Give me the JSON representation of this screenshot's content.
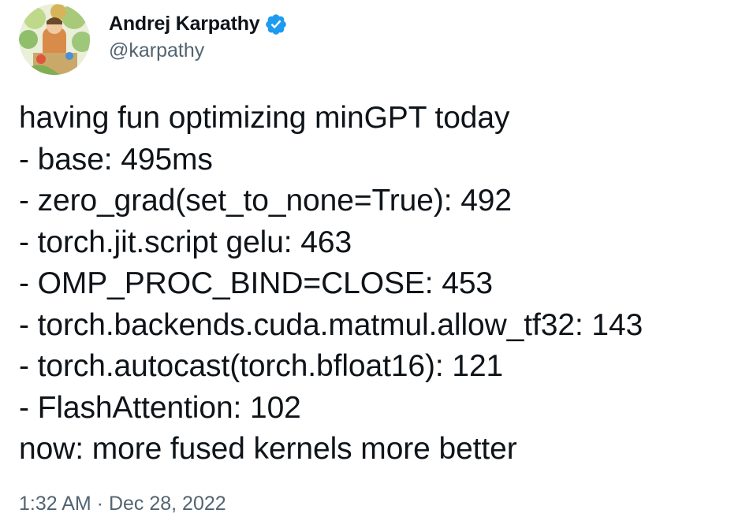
{
  "author": {
    "display_name": "Andrej Karpathy",
    "handle": "@karpathy",
    "verified": true,
    "verified_color": "#1d9bf0"
  },
  "tweet": {
    "lines": [
      "having fun optimizing minGPT today",
      "- base: 495ms",
      "- zero_grad(set_to_none=True): 492",
      "- torch.jit.script gelu: 463",
      "- OMP_PROC_BIND=CLOSE: 453",
      "- torch.backends.cuda.matmul.allow_tf32: 143",
      "- torch.autocast(torch.bfloat16): 121",
      "- FlashAttention: 102",
      "now: more fused kernels more better"
    ],
    "timestamp": "1:32 AM · Dec 28, 2022"
  },
  "icons": {
    "avatar": "avatar-illustration",
    "verified": "verified-badge-icon"
  },
  "colors": {
    "text": "#0f1419",
    "secondary": "#536471",
    "background": "#ffffff"
  }
}
